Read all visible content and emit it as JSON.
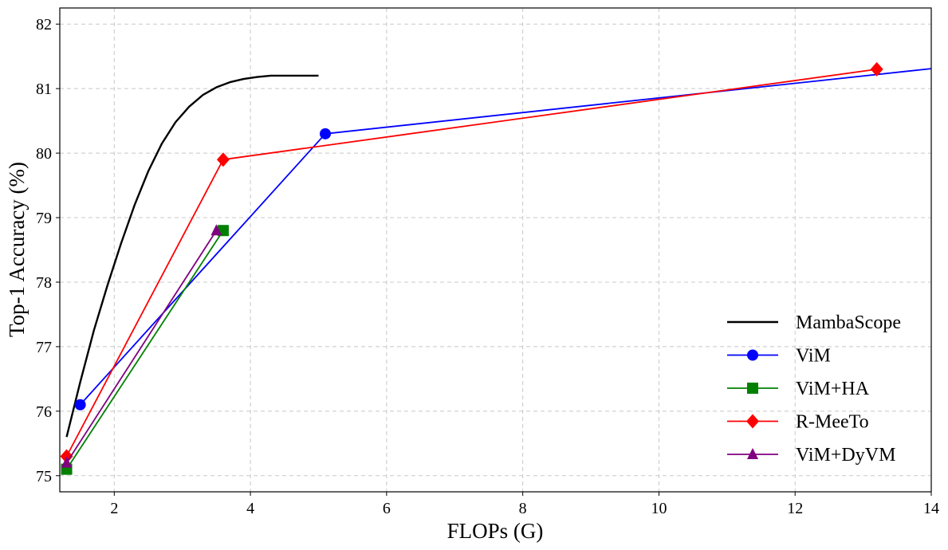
{
  "chart_data": {
    "type": "line",
    "title": "",
    "xlabel": "FLOPs (G)",
    "ylabel": "Top-1 Accuracy (%)",
    "xlim": [
      1.2,
      14
    ],
    "ylim": [
      74.75,
      82.25
    ],
    "xticks": [
      2,
      4,
      6,
      8,
      10,
      12,
      14
    ],
    "yticks": [
      75,
      76,
      77,
      78,
      79,
      80,
      81,
      82
    ],
    "grid": true,
    "legend_position": "lower-right",
    "series": [
      {
        "name": "MambaScope",
        "color": "#000000",
        "marker": "none",
        "x": [
          1.3,
          1.5,
          1.7,
          1.9,
          2.1,
          2.3,
          2.5,
          2.7,
          2.9,
          3.1,
          3.3,
          3.5,
          3.7,
          3.9,
          4.1,
          4.3,
          4.5,
          4.7,
          5.0
        ],
        "y": [
          75.6,
          76.45,
          77.25,
          77.95,
          78.6,
          79.2,
          79.72,
          80.15,
          80.48,
          80.72,
          80.9,
          81.02,
          81.1,
          81.15,
          81.18,
          81.2,
          81.2,
          81.2,
          81.2
        ]
      },
      {
        "name": "ViM",
        "color": "#0000ff",
        "marker": "circle",
        "x": [
          1.5,
          5.1,
          14.8
        ],
        "y": [
          76.1,
          80.3,
          81.4
        ]
      },
      {
        "name": "ViM+HA",
        "color": "#008000",
        "marker": "square",
        "x": [
          1.3,
          3.6
        ],
        "y": [
          75.1,
          78.8
        ]
      },
      {
        "name": "R-MeeTo",
        "color": "#ff0000",
        "marker": "diamond",
        "x": [
          1.3,
          3.6,
          13.2
        ],
        "y": [
          75.3,
          79.9,
          81.3
        ]
      },
      {
        "name": "ViM+DyVM",
        "color": "#800080",
        "marker": "triangle",
        "x": [
          1.3,
          3.5
        ],
        "y": [
          75.2,
          78.8
        ]
      }
    ]
  }
}
